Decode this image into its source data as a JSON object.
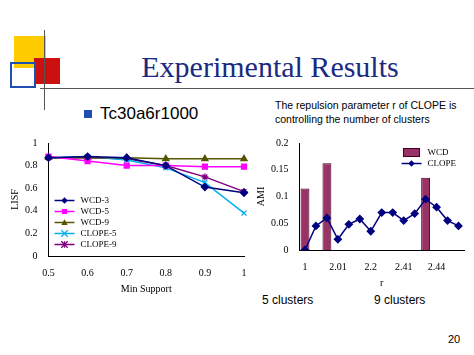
{
  "slide": {
    "title": "Experimental Results",
    "bullet": "Tc30a6r1000",
    "note": "The repulsion parameter r of CLOPE is controlling the number of clusters",
    "page": "20"
  },
  "chart_data": [
    {
      "type": "line",
      "x_label": "Min Support",
      "y_label": "LISF",
      "categories": [
        "0.5",
        "0.6",
        "0.7",
        "0.8",
        "0.9",
        "1"
      ],
      "ylim": [
        0,
        1
      ],
      "yticks": [
        0,
        0.2,
        0.4,
        0.6,
        0.8,
        1
      ],
      "grid": false,
      "legend": "lower left",
      "series": [
        {
          "name": "WCD-3",
          "color": "#000080",
          "marker": "diamond",
          "values": [
            0.87,
            0.88,
            0.87,
            0.8,
            0.61,
            0.56
          ]
        },
        {
          "name": "WCD-5",
          "color": "#ff00ff",
          "marker": "square",
          "values": [
            0.88,
            0.84,
            0.8,
            0.8,
            0.79,
            0.79
          ]
        },
        {
          "name": "WCD-9",
          "color": "#555500",
          "marker": "triangle",
          "values": [
            0.87,
            0.87,
            0.87,
            0.86,
            0.86,
            0.86
          ]
        },
        {
          "name": "CLOPE-5",
          "color": "#00b0f0",
          "marker": "x",
          "values": [
            0.87,
            0.88,
            0.85,
            0.78,
            0.65,
            0.38
          ]
        },
        {
          "name": "CLOPE-9",
          "color": "#800080",
          "marker": "star",
          "values": [
            0.87,
            0.87,
            0.86,
            0.8,
            0.7,
            0.57
          ]
        }
      ]
    },
    {
      "type": "bar",
      "x_label": "r",
      "y_label": "AMI",
      "categories": [
        "1",
        null,
        null,
        "2.01",
        null,
        null,
        "2.2",
        null,
        null,
        "2.41",
        null,
        null,
        "2.44",
        null,
        null
      ],
      "ylim": [
        0,
        0.2
      ],
      "yticks": [
        0,
        0.05,
        0.1,
        0.15,
        0.2
      ],
      "grid": false,
      "legend": "upper right",
      "annotations": [
        "5 clusters",
        "9 clusters"
      ],
      "series": [
        {
          "name": "WCD",
          "type": "bar",
          "color": "#993366",
          "values": [
            0.115,
            null,
            0.162,
            null,
            null,
            null,
            null,
            null,
            null,
            null,
            null,
            0.135,
            null,
            null,
            null
          ]
        },
        {
          "name": "CLOPE",
          "type": "line",
          "color": "#000080",
          "marker": "diamond",
          "values": [
            0.0,
            0.045,
            0.06,
            0.02,
            0.048,
            0.058,
            0.035,
            0.07,
            0.07,
            0.055,
            0.068,
            0.095,
            0.08,
            0.055,
            0.045
          ]
        }
      ]
    }
  ]
}
